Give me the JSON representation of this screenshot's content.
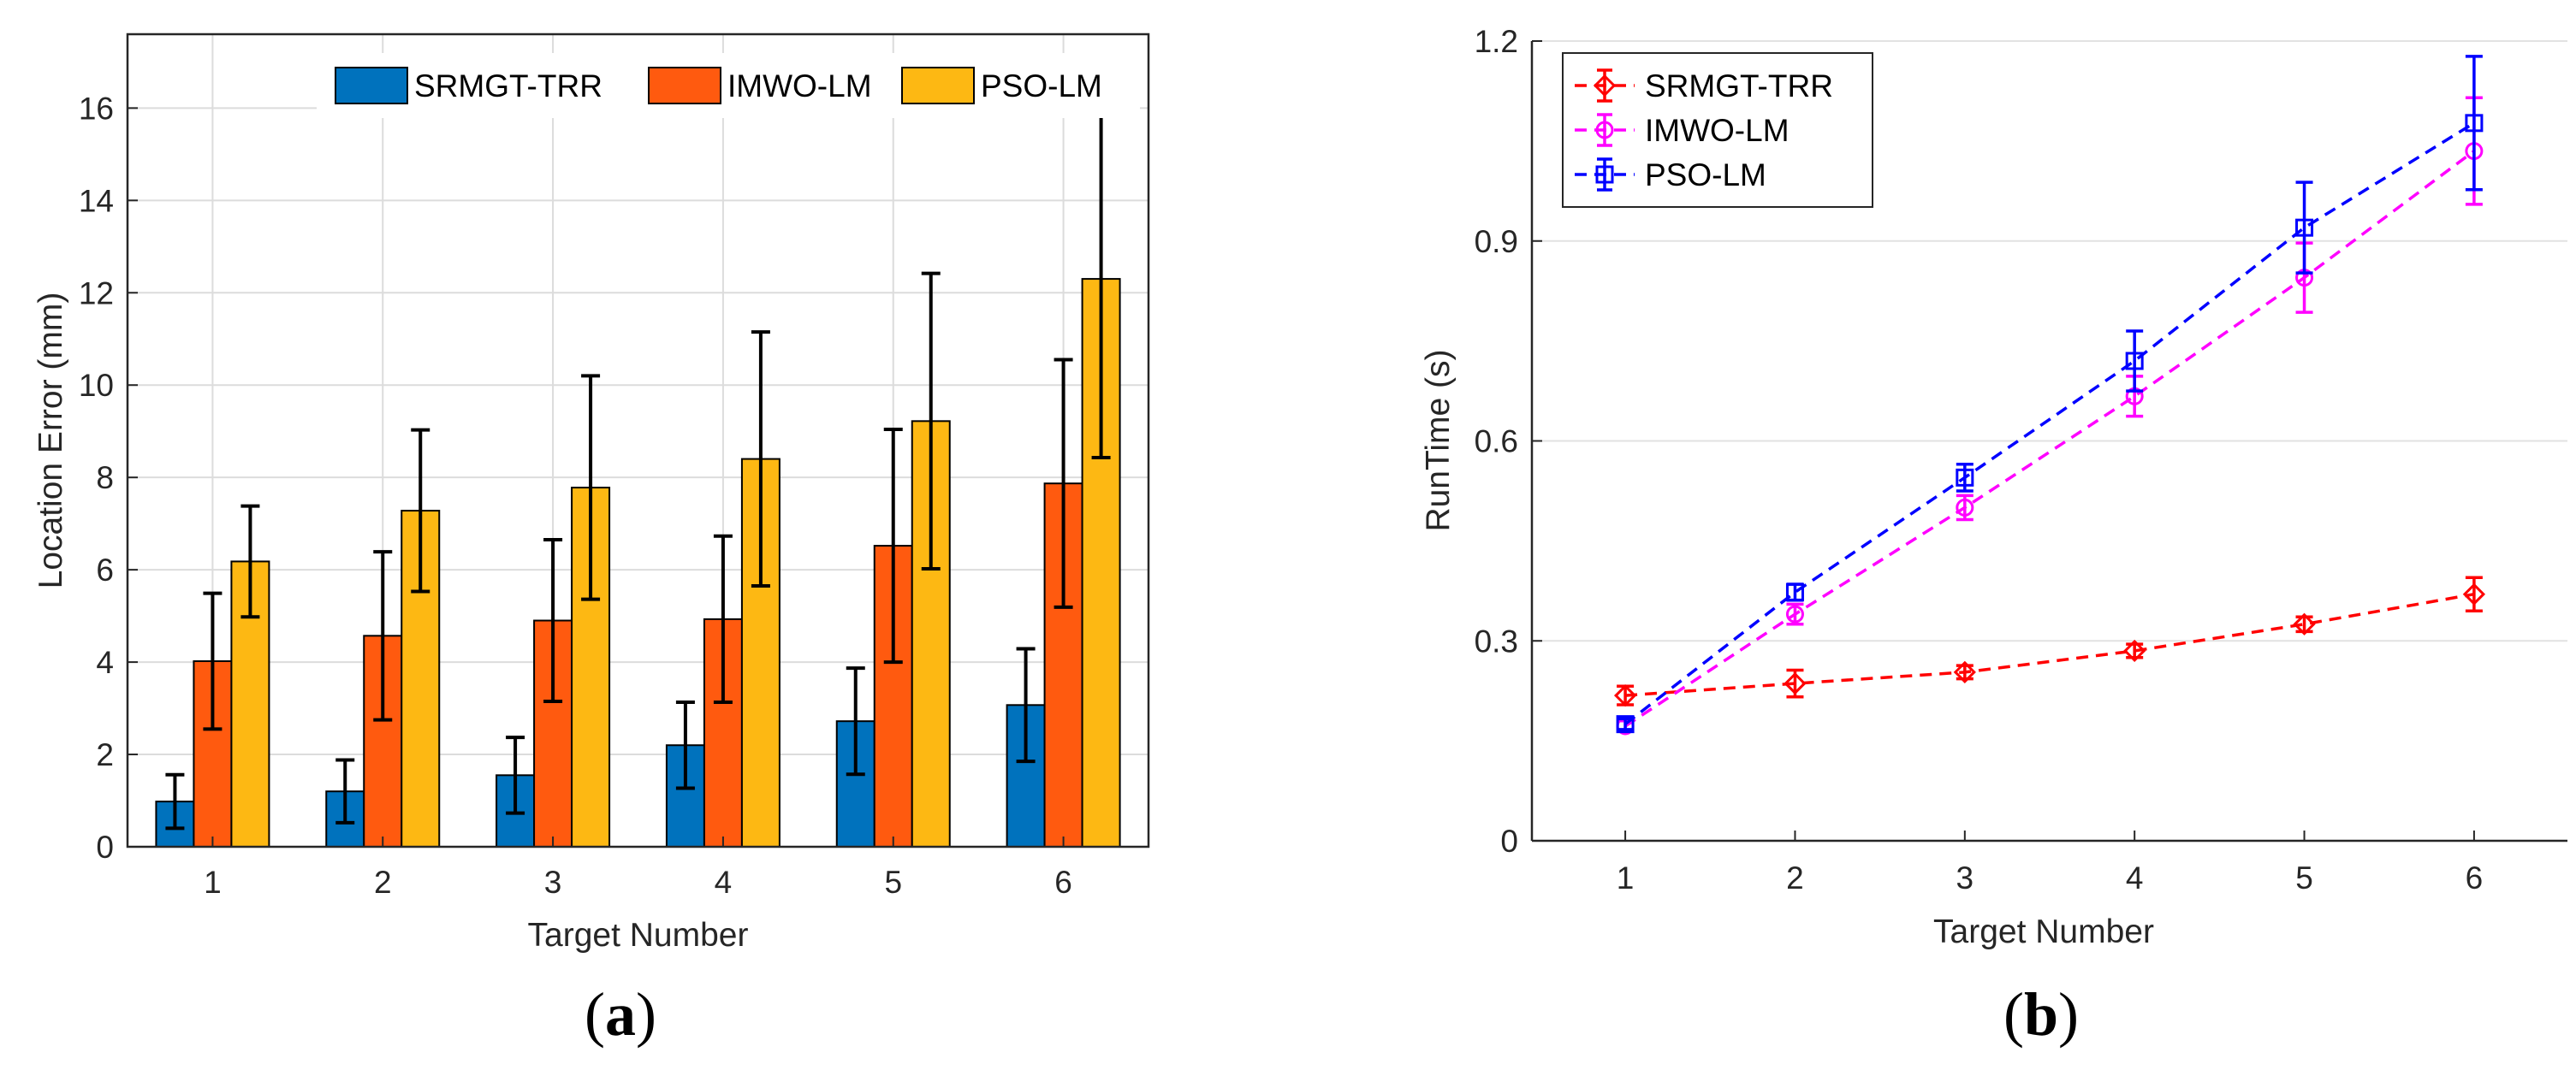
{
  "chart_data": [
    {
      "type": "bar",
      "caption_letter": "a",
      "categories": [
        "1",
        "2",
        "3",
        "4",
        "5",
        "6"
      ],
      "xlabel": "Target Number",
      "ylabel": "Location Error (mm)",
      "ylim": [
        0,
        17.6
      ],
      "yticks": [
        0,
        2,
        4,
        6,
        8,
        10,
        12,
        14,
        16
      ],
      "grid": true,
      "legend_position": "top-right",
      "series": [
        {
          "name": "SRMGT-TRR",
          "color": "#0072BD",
          "values": [
            0.98,
            1.2,
            1.55,
            2.2,
            2.72,
            3.07
          ],
          "error": [
            0.58,
            0.68,
            0.82,
            0.93,
            1.15,
            1.22
          ]
        },
        {
          "name": "IMWO-LM",
          "color": "#FF5A0F",
          "values": [
            4.02,
            4.57,
            4.9,
            4.93,
            6.52,
            7.87
          ],
          "error": [
            1.47,
            1.82,
            1.75,
            1.8,
            2.52,
            2.68
          ]
        },
        {
          "name": "PSO-LM",
          "color": "#FDB813",
          "values": [
            6.18,
            7.28,
            7.78,
            8.4,
            9.22,
            12.3
          ],
          "error": [
            1.2,
            1.75,
            2.42,
            2.75,
            3.2,
            3.87
          ]
        }
      ]
    },
    {
      "type": "line",
      "caption_letter": "b",
      "x": [
        1,
        2,
        3,
        4,
        5,
        6
      ],
      "xlabel": "Target Number",
      "ylabel": "RunTime (s)",
      "xlim": [
        0.45,
        6.55
      ],
      "ylim": [
        0,
        1.2
      ],
      "yticks": [
        "0",
        "0.3",
        "0.6",
        "0.9",
        "1.2"
      ],
      "grid": true,
      "legend_position": "top-left",
      "series": [
        {
          "name": "SRMGT-TRR",
          "color": "#FF0000",
          "marker": "diamond",
          "linestyle": "dashed",
          "values": [
            0.218,
            0.236,
            0.253,
            0.285,
            0.325,
            0.37
          ],
          "error": [
            0.014,
            0.02,
            0.01,
            0.01,
            0.011,
            0.025
          ]
        },
        {
          "name": "IMWO-LM",
          "color": "#FF00FF",
          "marker": "circle",
          "linestyle": "dashed",
          "values": [
            0.172,
            0.34,
            0.5,
            0.667,
            0.845,
            1.035
          ],
          "error": [
            0.008,
            0.015,
            0.018,
            0.03,
            0.052,
            0.08
          ]
        },
        {
          "name": "PSO-LM",
          "color": "#0000FF",
          "marker": "square",
          "linestyle": "dashed",
          "values": [
            0.175,
            0.373,
            0.545,
            0.72,
            0.92,
            1.077
          ],
          "error": [
            0.008,
            0.012,
            0.02,
            0.045,
            0.068,
            0.1
          ]
        }
      ]
    }
  ]
}
